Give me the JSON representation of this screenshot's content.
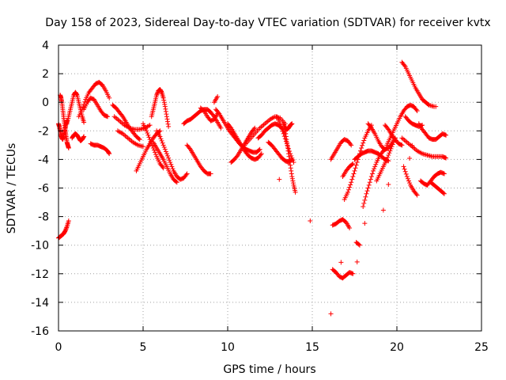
{
  "chart_data": {
    "type": "scatter",
    "title": "Day 158 of 2023, Sidereal Day-to-day VTEC variation (SDTVAR) for receiver kvtx",
    "xlabel": "GPS time / hours",
    "ylabel": "SDTVAR / TECUs",
    "xlim": [
      0,
      25
    ],
    "ylim": [
      -16,
      4
    ],
    "xticks": [
      0,
      5,
      10,
      15,
      20,
      25
    ],
    "yticks": [
      -16,
      -14,
      -12,
      -10,
      -8,
      -6,
      -4,
      -2,
      0,
      2,
      4
    ],
    "grid": true,
    "marker": "plus",
    "color": "#ff0000",
    "series": [
      {
        "name": "s1",
        "x": [
          0.0,
          0.05,
          0.1,
          0.15,
          0.2,
          0.25,
          0.3,
          0.35,
          0.4,
          0.45,
          0.5
        ],
        "y": [
          -1.5,
          -1.7,
          -2.0,
          -2.3,
          -2.5,
          -2.6,
          -2.4,
          -2.1,
          -1.8,
          -1.5,
          -1.3
        ]
      },
      {
        "name": "s2",
        "x": [
          0.1,
          0.15,
          0.2,
          0.25,
          0.3,
          0.35,
          0.4,
          0.45,
          0.5,
          0.55,
          0.6
        ],
        "y": [
          0.5,
          0.3,
          0.0,
          -0.5,
          -1.0,
          -1.5,
          -2.0,
          -2.4,
          -2.8,
          -3.0,
          -3.2
        ]
      },
      {
        "name": "s3",
        "x": [
          0.0,
          0.1,
          0.2,
          0.3,
          0.4,
          0.5,
          0.6
        ],
        "y": [
          -9.5,
          -9.4,
          -9.3,
          -9.2,
          -9.0,
          -8.7,
          -8.3
        ]
      },
      {
        "name": "s4",
        "x": [
          0.5,
          0.6,
          0.7,
          0.8,
          0.9,
          1.0,
          1.1,
          1.2,
          1.3,
          1.4,
          1.5
        ],
        "y": [
          -1.5,
          -1.0,
          -0.5,
          0.0,
          0.5,
          0.7,
          0.5,
          0.0,
          -0.5,
          -1.0,
          -1.4
        ]
      },
      {
        "name": "s5",
        "x": [
          0.8,
          0.9,
          1.0,
          1.1,
          1.2,
          1.3,
          1.4,
          1.5
        ],
        "y": [
          -2.5,
          -2.3,
          -2.2,
          -2.3,
          -2.5,
          -2.7,
          -2.6,
          -2.4
        ]
      },
      {
        "name": "s6",
        "x": [
          1.2,
          1.4,
          1.6,
          1.8,
          2.0,
          2.2,
          2.4,
          2.6,
          2.8,
          3.0
        ],
        "y": [
          -1.0,
          -0.5,
          0.2,
          0.7,
          1.0,
          1.3,
          1.4,
          1.2,
          0.8,
          0.3
        ]
      },
      {
        "name": "s7",
        "x": [
          1.5,
          1.7,
          1.9,
          2.1,
          2.3,
          2.5,
          2.7,
          2.9
        ],
        "y": [
          -0.5,
          0.0,
          0.3,
          0.2,
          -0.2,
          -0.6,
          -0.9,
          -1.0
        ]
      },
      {
        "name": "s8",
        "x": [
          1.9,
          2.1,
          2.3,
          2.5,
          2.7,
          2.9,
          3.0
        ],
        "y": [
          -2.9,
          -3.0,
          -3.0,
          -3.1,
          -3.2,
          -3.4,
          -3.6
        ]
      },
      {
        "name": "s9",
        "x": [
          3.2,
          3.4,
          3.6,
          3.8,
          4.0,
          4.2,
          4.4,
          4.6,
          4.8
        ],
        "y": [
          -0.2,
          -0.4,
          -0.7,
          -1.0,
          -1.4,
          -1.8,
          -2.1,
          -2.4,
          -2.6
        ]
      },
      {
        "name": "s10",
        "x": [
          3.3,
          3.6,
          3.9,
          4.2,
          4.5,
          4.8,
          5.1,
          5.4
        ],
        "y": [
          -1.0,
          -1.3,
          -1.6,
          -1.8,
          -1.9,
          -1.9,
          -1.8,
          -1.6
        ]
      },
      {
        "name": "s11",
        "x": [
          3.5,
          3.8,
          4.1,
          4.4,
          4.7,
          5.0
        ],
        "y": [
          -2.0,
          -2.2,
          -2.5,
          -2.8,
          -3.0,
          -3.1
        ]
      },
      {
        "name": "s12",
        "x": [
          4.6,
          4.8,
          5.0,
          5.2,
          5.4,
          5.6,
          5.8,
          6.0
        ],
        "y": [
          -4.8,
          -4.3,
          -3.8,
          -3.3,
          -2.9,
          -2.5,
          -2.2,
          -2.0
        ]
      },
      {
        "name": "s13",
        "x": [
          5.5,
          5.6,
          5.7,
          5.8,
          5.9,
          6.0,
          6.1,
          6.2,
          6.3,
          6.4,
          6.5
        ],
        "y": [
          -1.0,
          -0.5,
          0.0,
          0.5,
          0.8,
          0.9,
          0.7,
          0.3,
          -0.3,
          -1.0,
          -1.7
        ]
      },
      {
        "name": "s14",
        "x": [
          5.8,
          6.0,
          6.2,
          6.4,
          6.6,
          6.8,
          7.0,
          7.2,
          7.4,
          7.6
        ],
        "y": [
          -2.0,
          -2.4,
          -3.0,
          -3.6,
          -4.2,
          -4.8,
          -5.2,
          -5.4,
          -5.3,
          -5.0
        ]
      },
      {
        "name": "s15",
        "x": [
          5.6,
          5.8,
          6.0,
          6.2,
          6.4,
          6.6,
          6.8,
          7.0
        ],
        "y": [
          -2.8,
          -3.2,
          -3.6,
          -4.0,
          -4.5,
          -5.0,
          -5.4,
          -5.6
        ]
      },
      {
        "name": "s16",
        "x": [
          5.0,
          5.2,
          5.4,
          5.6,
          5.8,
          6.0,
          6.2
        ],
        "y": [
          -1.5,
          -2.0,
          -2.6,
          -3.2,
          -3.8,
          -4.3,
          -4.6
        ]
      },
      {
        "name": "s17",
        "x": [
          7.4,
          7.6,
          7.8,
          8.0,
          8.2,
          8.4,
          8.6,
          8.8,
          9.0,
          9.2,
          9.4,
          9.6
        ],
        "y": [
          -1.5,
          -1.3,
          -1.2,
          -1.0,
          -0.8,
          -0.6,
          -0.5,
          -0.5,
          -0.7,
          -1.0,
          -1.4,
          -1.8
        ]
      },
      {
        "name": "s18",
        "x": [
          7.6,
          7.8,
          8.0,
          8.2,
          8.4,
          8.6,
          8.8,
          9.0
        ],
        "y": [
          -3.0,
          -3.3,
          -3.7,
          -4.1,
          -4.5,
          -4.8,
          -5.0,
          -5.0
        ]
      },
      {
        "name": "s19",
        "x": [
          8.4,
          8.6,
          8.8,
          9.0,
          9.2,
          9.4
        ],
        "y": [
          -0.4,
          -0.6,
          -1.0,
          -1.3,
          -1.2,
          -0.8
        ]
      },
      {
        "name": "s20",
        "x": [
          9.3,
          9.5,
          9.7,
          9.9,
          10.1,
          10.3,
          10.5,
          10.7,
          10.9,
          11.1,
          11.3,
          11.5,
          11.7,
          11.9
        ],
        "y": [
          -0.5,
          -0.8,
          -1.2,
          -1.6,
          -2.0,
          -2.3,
          -2.6,
          -2.9,
          -3.1,
          -3.3,
          -3.4,
          -3.5,
          -3.5,
          -3.3
        ]
      },
      {
        "name": "s21",
        "x": [
          10.0,
          10.2,
          10.4,
          10.6,
          10.8,
          11.0,
          11.2,
          11.4,
          11.6,
          11.8,
          12.0
        ],
        "y": [
          -1.5,
          -1.8,
          -2.2,
          -2.6,
          -3.0,
          -3.4,
          -3.7,
          -3.9,
          -4.0,
          -3.9,
          -3.6
        ]
      },
      {
        "name": "s22",
        "x": [
          10.2,
          10.4,
          10.6,
          10.8,
          11.0,
          11.2,
          11.4,
          11.6
        ],
        "y": [
          -4.2,
          -4.0,
          -3.7,
          -3.3,
          -2.9,
          -2.5,
          -2.1,
          -1.8
        ]
      },
      {
        "name": "s23",
        "x": [
          11.0,
          11.3,
          11.6,
          11.9,
          12.2,
          12.5,
          12.8,
          13.1,
          13.4
        ],
        "y": [
          -3.0,
          -2.6,
          -2.2,
          -1.8,
          -1.5,
          -1.2,
          -1.0,
          -1.1,
          -1.5
        ]
      },
      {
        "name": "s24",
        "x": [
          11.8,
          12.0,
          12.2,
          12.4,
          12.6,
          12.8,
          13.0,
          13.2,
          13.4
        ],
        "y": [
          -2.5,
          -2.3,
          -2.0,
          -1.8,
          -1.6,
          -1.5,
          -1.6,
          -1.8,
          -2.2
        ]
      },
      {
        "name": "s25",
        "x": [
          12.4,
          12.6,
          12.8,
          13.0,
          13.2,
          13.4,
          13.6,
          13.8
        ],
        "y": [
          -2.8,
          -3.0,
          -3.3,
          -3.6,
          -3.9,
          -4.1,
          -4.2,
          -4.0
        ]
      },
      {
        "name": "s26",
        "x": [
          12.9,
          13.1,
          13.3,
          13.5,
          13.7,
          13.9
        ],
        "y": [
          -1.0,
          -1.5,
          -2.2,
          -2.9,
          -3.6,
          -4.2
        ]
      },
      {
        "name": "s27",
        "x": [
          13.4,
          13.5,
          13.6,
          13.7,
          13.8,
          13.9,
          14.0
        ],
        "y": [
          -2.0,
          -2.8,
          -3.6,
          -4.4,
          -5.2,
          -5.8,
          -6.3
        ]
      },
      {
        "name": "s28",
        "x": [
          13.3,
          13.4,
          13.5,
          13.6,
          13.7,
          13.8
        ],
        "y": [
          -1.5,
          -1.8,
          -1.9,
          -1.8,
          -1.6,
          -1.5
        ]
      },
      {
        "name": "s29",
        "x": [
          16.1,
          16.3,
          16.5,
          16.7,
          16.9,
          17.1,
          17.3
        ],
        "y": [
          -4.0,
          -3.6,
          -3.2,
          -2.8,
          -2.6,
          -2.7,
          -3.0
        ]
      },
      {
        "name": "s30",
        "x": [
          16.2,
          16.4,
          16.6,
          16.8,
          17.0,
          17.2
        ],
        "y": [
          -8.6,
          -8.5,
          -8.3,
          -8.2,
          -8.4,
          -8.8
        ]
      },
      {
        "name": "s31",
        "x": [
          16.2,
          16.4,
          16.6,
          16.8,
          17.0,
          17.2,
          17.4
        ],
        "y": [
          -11.7,
          -11.9,
          -12.2,
          -12.3,
          -12.1,
          -11.9,
          -12.0
        ]
      },
      {
        "name": "s32",
        "x": [
          16.8,
          17.0,
          17.2,
          17.4
        ],
        "y": [
          -5.2,
          -4.8,
          -4.5,
          -4.3
        ]
      },
      {
        "name": "s33",
        "x": [
          16.9,
          17.1,
          17.3,
          17.5,
          17.7,
          17.9,
          18.1,
          18.3,
          18.5
        ],
        "y": [
          -6.8,
          -6.3,
          -5.6,
          -4.8,
          -4.0,
          -3.2,
          -2.5,
          -2.0,
          -1.6
        ]
      },
      {
        "name": "s34",
        "x": [
          17.6,
          17.8
        ],
        "y": [
          -9.8,
          -10.0
        ]
      },
      {
        "name": "s35",
        "x": [
          17.5,
          17.7,
          17.9,
          18.1,
          18.3,
          18.5,
          18.7,
          18.9,
          19.1,
          19.3,
          19.5
        ],
        "y": [
          -4.0,
          -3.8,
          -3.6,
          -3.5,
          -3.4,
          -3.4,
          -3.5,
          -3.6,
          -3.8,
          -4.0,
          -4.1
        ]
      },
      {
        "name": "s36",
        "x": [
          18.0,
          18.2,
          18.4,
          18.6,
          18.8,
          19.0,
          19.2,
          19.4
        ],
        "y": [
          -7.3,
          -6.4,
          -5.6,
          -4.8,
          -4.2,
          -3.7,
          -3.4,
          -3.2
        ]
      },
      {
        "name": "s37",
        "x": [
          18.3,
          18.5,
          18.7,
          18.9,
          19.1,
          19.3,
          19.5,
          19.7,
          19.9
        ],
        "y": [
          -1.5,
          -1.8,
          -2.2,
          -2.7,
          -3.1,
          -3.3,
          -3.2,
          -2.9,
          -2.5
        ]
      },
      {
        "name": "s38",
        "x": [
          18.8,
          19.0,
          19.2,
          19.4,
          19.6,
          19.8
        ],
        "y": [
          -5.5,
          -5.0,
          -4.5,
          -4.0,
          -3.4,
          -2.8
        ]
      },
      {
        "name": "s39",
        "x": [
          19.3,
          19.5,
          19.7,
          19.9,
          20.1,
          20.3
        ],
        "y": [
          -1.6,
          -1.9,
          -2.3,
          -2.6,
          -2.9,
          -3.0
        ]
      },
      {
        "name": "s40",
        "x": [
          19.4,
          19.6,
          19.8,
          20.0,
          20.2,
          20.4,
          20.6,
          20.8,
          21.0,
          21.2
        ],
        "y": [
          -3.0,
          -2.5,
          -2.0,
          -1.5,
          -1.0,
          -0.6,
          -0.3,
          -0.2,
          -0.3,
          -0.6
        ]
      },
      {
        "name": "s41",
        "x": [
          20.3,
          20.5,
          20.7,
          20.9,
          21.1,
          21.3,
          21.5,
          21.7,
          21.9,
          22.2
        ],
        "y": [
          2.8,
          2.5,
          2.0,
          1.5,
          1.0,
          0.6,
          0.2,
          0.0,
          -0.2,
          -0.3
        ]
      },
      {
        "name": "s42",
        "x": [
          20.3,
          20.6,
          20.9,
          21.2,
          21.5,
          21.8,
          22.1,
          22.4,
          22.7,
          22.9
        ],
        "y": [
          -2.5,
          -2.8,
          -3.1,
          -3.4,
          -3.6,
          -3.7,
          -3.8,
          -3.8,
          -3.8,
          -3.9
        ]
      },
      {
        "name": "s43",
        "x": [
          20.4,
          20.6,
          20.8,
          21.0,
          21.2
        ],
        "y": [
          -4.5,
          -5.2,
          -5.8,
          -6.2,
          -6.5
        ]
      },
      {
        "name": "s44",
        "x": [
          20.5,
          20.7,
          20.9,
          21.1,
          21.3,
          21.5
        ],
        "y": [
          -1.0,
          -1.3,
          -1.5,
          -1.6,
          -1.7,
          -1.6
        ]
      },
      {
        "name": "s45",
        "x": [
          21.3,
          21.5,
          21.7,
          21.9,
          22.1,
          22.3,
          22.5,
          22.7,
          22.9
        ],
        "y": [
          -1.5,
          -1.9,
          -2.2,
          -2.5,
          -2.6,
          -2.6,
          -2.4,
          -2.2,
          -2.3
        ]
      },
      {
        "name": "s46",
        "x": [
          21.4,
          21.6,
          21.8,
          22.0,
          22.2,
          22.4,
          22.6,
          22.8
        ],
        "y": [
          -5.5,
          -5.7,
          -5.8,
          -5.5,
          -5.2,
          -5.0,
          -4.9,
          -5.0
        ]
      },
      {
        "name": "s47",
        "x": [
          22.0,
          22.2,
          22.4,
          22.6,
          22.8
        ],
        "y": [
          -5.6,
          -5.8,
          -6.0,
          -6.2,
          -6.4
        ]
      },
      {
        "name": "s48",
        "x": [
          16.1,
          22.3,
          16.7,
          9.4,
          9.2
        ],
        "y": [
          -14.8,
          -0.3,
          -11.2,
          0.4,
          0.0
        ]
      }
    ]
  }
}
